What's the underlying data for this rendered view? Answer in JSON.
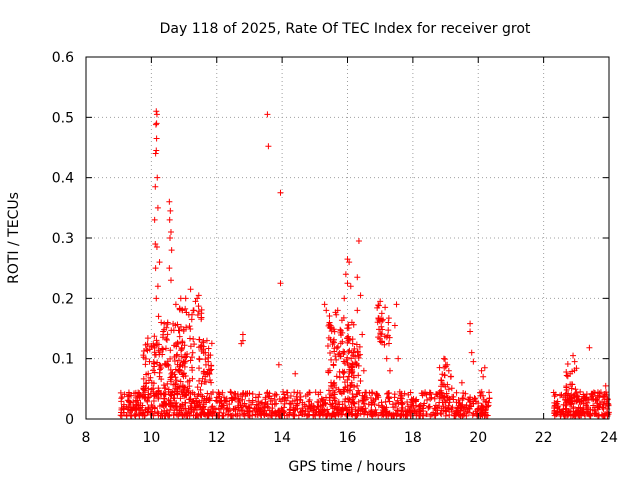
{
  "chart_data": {
    "type": "scatter",
    "title": "Day 118 of 2025, Rate Of TEC Index for receiver grot",
    "xlabel": "GPS time / hours",
    "ylabel": "ROTI / TECUs",
    "xlim": [
      8,
      24
    ],
    "ylim": [
      0,
      0.6
    ],
    "xticks": [
      8,
      10,
      12,
      14,
      16,
      18,
      20,
      22,
      24
    ],
    "yticks": [
      0,
      0.1,
      0.2,
      0.3,
      0.4,
      0.5,
      0.6
    ],
    "xtick_labels": [
      "8",
      "10",
      "12",
      "14",
      "16",
      "18",
      "20",
      "22",
      "24"
    ],
    "ytick_labels": [
      "0",
      "0.1",
      "0.2",
      "0.3",
      "0.4",
      "0.5",
      "0.6"
    ],
    "grid": true,
    "marker": "+",
    "color": "#ff0000",
    "series": [
      {
        "name": "ROTI",
        "bands": [
          {
            "x_start": 9.05,
            "x_end": 20.35,
            "y_min": 0.005,
            "y_max": 0.045,
            "count": 1100
          },
          {
            "x_start": 22.3,
            "x_end": 24.0,
            "y_min": 0.005,
            "y_max": 0.045,
            "count": 220
          }
        ],
        "clusters": [
          {
            "x_center": 10.1,
            "x_spread": 0.35,
            "y_min": 0.04,
            "y_max": 0.14,
            "count": 80
          },
          {
            "x_center": 10.7,
            "x_spread": 0.35,
            "y_min": 0.04,
            "y_max": 0.16,
            "count": 90
          },
          {
            "x_center": 11.2,
            "x_spread": 0.35,
            "y_min": 0.04,
            "y_max": 0.2,
            "count": 70
          },
          {
            "x_center": 11.7,
            "x_spread": 0.15,
            "y_min": 0.06,
            "y_max": 0.14,
            "count": 30
          },
          {
            "x_center": 15.8,
            "x_spread": 0.4,
            "y_min": 0.04,
            "y_max": 0.18,
            "count": 100
          },
          {
            "x_center": 16.15,
            "x_spread": 0.25,
            "y_min": 0.04,
            "y_max": 0.14,
            "count": 50
          },
          {
            "x_center": 17.1,
            "x_spread": 0.2,
            "y_min": 0.12,
            "y_max": 0.19,
            "count": 30
          },
          {
            "x_center": 19.0,
            "x_spread": 0.2,
            "y_min": 0.03,
            "y_max": 0.1,
            "count": 25
          },
          {
            "x_center": 22.85,
            "x_spread": 0.2,
            "y_min": 0.03,
            "y_max": 0.1,
            "count": 25
          }
        ],
        "points": [
          [
            10.15,
            0.51
          ],
          [
            10.17,
            0.505
          ],
          [
            10.16,
            0.49
          ],
          [
            10.14,
            0.488
          ],
          [
            10.16,
            0.465
          ],
          [
            10.15,
            0.445
          ],
          [
            10.13,
            0.44
          ],
          [
            10.18,
            0.4
          ],
          [
            10.12,
            0.385
          ],
          [
            10.2,
            0.35
          ],
          [
            10.1,
            0.33
          ],
          [
            10.12,
            0.29
          ],
          [
            10.17,
            0.285
          ],
          [
            10.13,
            0.25
          ],
          [
            10.25,
            0.26
          ],
          [
            10.2,
            0.22
          ],
          [
            10.15,
            0.2
          ],
          [
            10.22,
            0.17
          ],
          [
            10.3,
            0.16
          ],
          [
            10.5,
            0.16
          ],
          [
            10.55,
            0.36
          ],
          [
            10.58,
            0.345
          ],
          [
            10.56,
            0.33
          ],
          [
            10.6,
            0.31
          ],
          [
            10.57,
            0.3
          ],
          [
            10.62,
            0.28
          ],
          [
            10.55,
            0.25
          ],
          [
            10.6,
            0.23
          ],
          [
            10.75,
            0.19
          ],
          [
            10.9,
            0.2
          ],
          [
            10.95,
            0.18
          ],
          [
            11.05,
            0.2
          ],
          [
            11.2,
            0.215
          ],
          [
            11.35,
            0.195
          ],
          [
            11.4,
            0.2
          ],
          [
            11.45,
            0.205
          ],
          [
            11.3,
            0.18
          ],
          [
            11.6,
            0.12
          ],
          [
            11.65,
            0.11
          ],
          [
            11.7,
            0.13
          ],
          [
            12.8,
            0.14
          ],
          [
            12.75,
            0.125
          ],
          [
            12.8,
            0.13
          ],
          [
            13.55,
            0.505
          ],
          [
            13.58,
            0.452
          ],
          [
            13.95,
            0.375
          ],
          [
            13.95,
            0.225
          ],
          [
            13.9,
            0.09
          ],
          [
            14.4,
            0.075
          ],
          [
            15.3,
            0.19
          ],
          [
            15.35,
            0.18
          ],
          [
            15.45,
            0.16
          ],
          [
            15.7,
            0.18
          ],
          [
            15.9,
            0.2
          ],
          [
            16.0,
            0.265
          ],
          [
            16.05,
            0.26
          ],
          [
            15.95,
            0.24
          ],
          [
            16.0,
            0.225
          ],
          [
            16.1,
            0.22
          ],
          [
            16.3,
            0.235
          ],
          [
            16.4,
            0.205
          ],
          [
            16.35,
            0.295
          ],
          [
            16.3,
            0.18
          ],
          [
            16.45,
            0.14
          ],
          [
            16.5,
            0.08
          ],
          [
            17.0,
            0.195
          ],
          [
            17.05,
            0.175
          ],
          [
            17.15,
            0.185
          ],
          [
            17.25,
            0.16
          ],
          [
            17.5,
            0.19
          ],
          [
            17.45,
            0.155
          ],
          [
            17.55,
            0.1
          ],
          [
            17.2,
            0.1
          ],
          [
            17.3,
            0.08
          ],
          [
            17.6,
            0.045
          ],
          [
            18.95,
            0.1
          ],
          [
            19.05,
            0.09
          ],
          [
            19.1,
            0.08
          ],
          [
            19.5,
            0.06
          ],
          [
            19.75,
            0.158
          ],
          [
            19.75,
            0.145
          ],
          [
            19.8,
            0.11
          ],
          [
            19.85,
            0.095
          ],
          [
            20.1,
            0.08
          ],
          [
            20.15,
            0.07
          ],
          [
            20.2,
            0.085
          ],
          [
            22.9,
            0.105
          ],
          [
            22.95,
            0.095
          ],
          [
            23.4,
            0.118
          ],
          [
            23.9,
            0.055
          ]
        ]
      }
    ]
  }
}
